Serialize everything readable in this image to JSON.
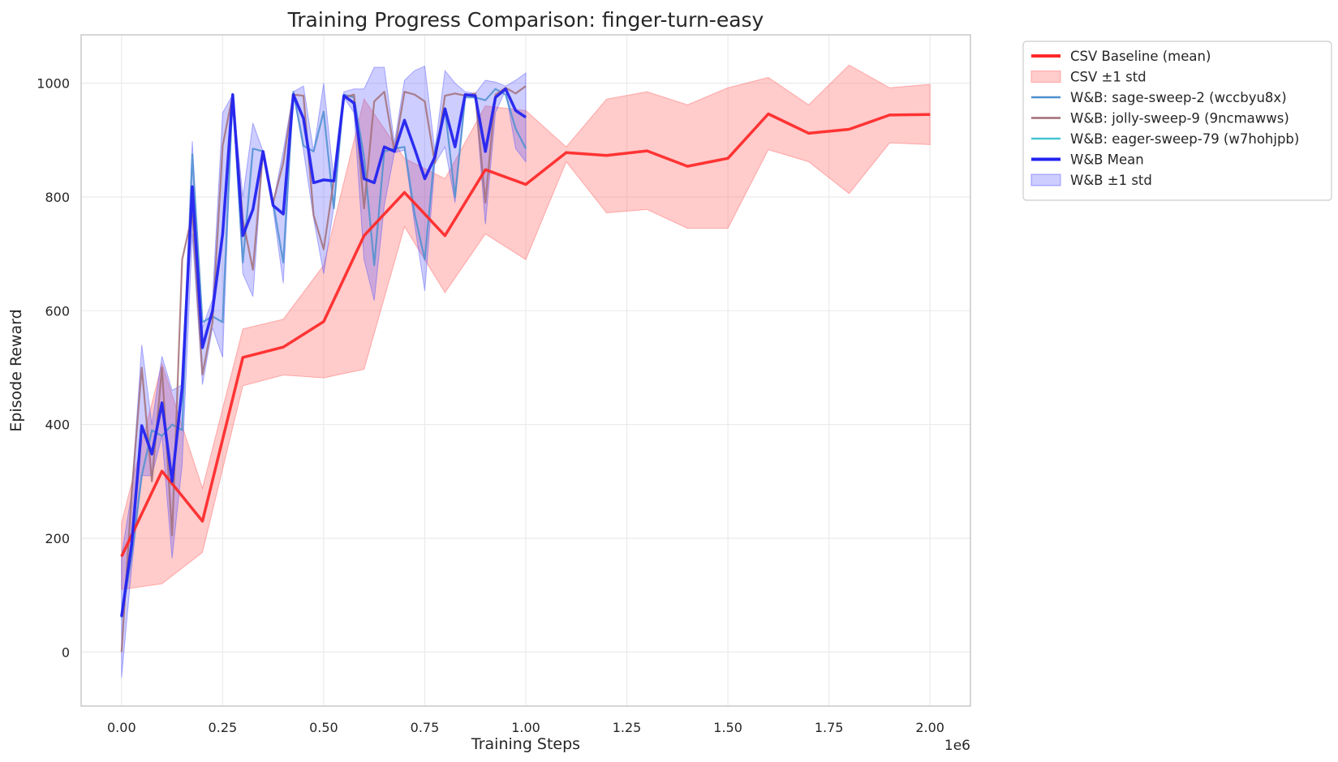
{
  "chart_data": {
    "type": "line",
    "title": "Training Progress Comparison: finger-turn-easy",
    "xlabel": "Training Steps",
    "ylabel": "Episode Reward",
    "x_offset_label": "1e6",
    "xlim": [
      -0.1,
      2.1
    ],
    "ylim": [
      -95,
      1085
    ],
    "x_ticks": [
      0.0,
      0.25,
      0.5,
      0.75,
      1.0,
      1.25,
      1.5,
      1.75,
      2.0
    ],
    "x_tick_labels": [
      "0.00",
      "0.25",
      "0.50",
      "0.75",
      "1.00",
      "1.25",
      "1.50",
      "1.75",
      "2.00"
    ],
    "y_ticks": [
      0,
      200,
      400,
      600,
      800,
      1000
    ],
    "y_tick_labels": [
      "0",
      "200",
      "400",
      "600",
      "800",
      "1000"
    ],
    "grid": true,
    "legend_position": "outside-top-right",
    "bands": [
      {
        "name": "CSV ±1 std",
        "color": "#ff6b6b",
        "opacity": 0.35,
        "x": [
          0,
          0.1,
          0.2,
          0.3,
          0.4,
          0.5,
          0.6,
          0.7,
          0.8,
          0.9,
          1.0,
          1.1,
          1.2,
          1.3,
          1.4,
          1.5,
          1.6,
          1.7,
          1.8,
          1.9,
          2.0
        ],
        "lower": [
          110,
          120,
          175,
          468,
          487,
          482,
          497,
          748,
          632,
          735,
          690,
          862,
          772,
          778,
          745,
          745,
          883,
          862,
          806,
          895,
          892
        ],
        "upper": [
          227,
          507,
          288,
          568,
          585,
          680,
          972,
          868,
          832,
          960,
          952,
          888,
          972,
          985,
          962,
          992,
          1010,
          962,
          1032,
          992,
          998
        ]
      },
      {
        "name": "W&B ±1 std",
        "color": "#4a4aff",
        "opacity": 0.28,
        "x": [
          0,
          0.025,
          0.05,
          0.075,
          0.1,
          0.125,
          0.15,
          0.175,
          0.2,
          0.225,
          0.25,
          0.275,
          0.3,
          0.325,
          0.35,
          0.375,
          0.4,
          0.425,
          0.45,
          0.475,
          0.5,
          0.525,
          0.55,
          0.575,
          0.6,
          0.625,
          0.65,
          0.675,
          0.7,
          0.725,
          0.75,
          0.775,
          0.8,
          0.825,
          0.85,
          0.875,
          0.9,
          0.925,
          0.95,
          0.975,
          1.0
        ],
        "lower": [
          -45,
          150,
          310,
          310,
          380,
          165,
          330,
          735,
          470,
          570,
          518,
          980,
          665,
          625,
          878,
          780,
          648,
          982,
          882,
          762,
          665,
          782,
          975,
          948,
          690,
          618,
          785,
          878,
          882,
          752,
          635,
          858,
          888,
          790,
          978,
          975,
          752,
          948,
          988,
          885,
          862
        ],
        "upper": [
          170,
          280,
          540,
          400,
          520,
          460,
          470,
          898,
          570,
          620,
          948,
          980,
          800,
          930,
          880,
          790,
          880,
          985,
          995,
          880,
          1000,
          830,
          985,
          990,
          990,
          1028,
          1028,
          895,
          1005,
          1022,
          1030,
          882,
          1022,
          1000,
          985,
          982,
          1005,
          1002,
          995,
          1005,
          1018
        ]
      }
    ],
    "series": [
      {
        "name": "CSV Baseline (mean)",
        "color": "#ff2a2a",
        "width": 3.5,
        "x": [
          0,
          0.1,
          0.2,
          0.3,
          0.4,
          0.5,
          0.6,
          0.7,
          0.8,
          0.9,
          1.0,
          1.1,
          1.2,
          1.3,
          1.4,
          1.5,
          1.6,
          1.7,
          1.8,
          1.9,
          2.0
        ],
        "values": [
          168,
          318,
          230,
          518,
          536,
          581,
          732,
          808,
          732,
          848,
          822,
          878,
          873,
          881,
          854,
          868,
          946,
          912,
          919,
          944,
          945
        ]
      },
      {
        "name": "W&B: sage-sweep-2 (wccbyu8x)",
        "color": "#4c8fcf",
        "width": 2.2,
        "x": [
          0,
          0.025,
          0.05,
          0.075,
          0.1,
          0.125,
          0.15,
          0.175,
          0.2,
          0.225,
          0.25,
          0.275,
          0.3,
          0.325,
          0.35,
          0.375,
          0.4,
          0.425,
          0.45,
          0.475,
          0.5,
          0.525,
          0.55,
          0.575,
          0.6,
          0.625,
          0.65,
          0.675,
          0.7,
          0.725,
          0.75,
          0.775,
          0.8,
          0.825,
          0.85,
          0.875,
          0.9,
          0.925,
          0.95,
          0.975,
          1.0
        ],
        "values": [
          60,
          170,
          310,
          390,
          380,
          400,
          390,
          875,
          580,
          590,
          580,
          980,
          685,
          885,
          880,
          790,
          685,
          985,
          890,
          880,
          950,
          780,
          980,
          975,
          870,
          680,
          880,
          885,
          888,
          770,
          690,
          880,
          955,
          800,
          975,
          975,
          970,
          990,
          980,
          920,
          885
        ]
      },
      {
        "name": "W&B: jolly-sweep-9 (9ncmawws)",
        "color": "#a26f78",
        "width": 2.2,
        "x": [
          0,
          0.025,
          0.05,
          0.075,
          0.1,
          0.125,
          0.15,
          0.175,
          0.2,
          0.225,
          0.25,
          0.275,
          0.3,
          0.325,
          0.35,
          0.375,
          0.4,
          0.425,
          0.45,
          0.475,
          0.5,
          0.525,
          0.55,
          0.575,
          0.6,
          0.625,
          0.65,
          0.675,
          0.7,
          0.725,
          0.75,
          0.775,
          0.8,
          0.825,
          0.85,
          0.875,
          0.9,
          0.925,
          0.95,
          0.975,
          1.0
        ],
        "values": [
          0,
          280,
          500,
          300,
          500,
          205,
          690,
          770,
          488,
          580,
          890,
          980,
          760,
          672,
          880,
          790,
          860,
          980,
          978,
          768,
          708,
          830,
          975,
          980,
          780,
          968,
          985,
          880,
          985,
          980,
          968,
          860,
          978,
          982,
          978,
          982,
          790,
          980,
          992,
          982,
          995
        ]
      },
      {
        "name": "W&B: eager-sweep-79 (w7hohjpb)",
        "color": "#44c5d3",
        "width": 2.2,
        "x": [],
        "values": []
      },
      {
        "name": "W&B Mean",
        "color": "#2323f0",
        "width": 3.5,
        "x": [
          0,
          0.025,
          0.05,
          0.075,
          0.1,
          0.125,
          0.15,
          0.175,
          0.2,
          0.225,
          0.25,
          0.275,
          0.3,
          0.325,
          0.35,
          0.375,
          0.4,
          0.425,
          0.45,
          0.475,
          0.5,
          0.525,
          0.55,
          0.575,
          0.6,
          0.625,
          0.65,
          0.675,
          0.7,
          0.725,
          0.75,
          0.775,
          0.8,
          0.825,
          0.85,
          0.875,
          0.9,
          0.925,
          0.95,
          0.975,
          1.0
        ],
        "values": [
          62,
          190,
          398,
          348,
          438,
          300,
          465,
          818,
          535,
          600,
          735,
          980,
          732,
          778,
          880,
          785,
          770,
          980,
          938,
          825,
          830,
          828,
          978,
          965,
          832,
          825,
          888,
          880,
          935,
          885,
          832,
          870,
          955,
          888,
          980,
          978,
          880,
          975,
          990,
          952,
          940
        ]
      }
    ]
  },
  "legend": [
    {
      "label": "CSV Baseline (mean)",
      "kind": "line",
      "color": "#ff2a2a"
    },
    {
      "label": "CSV ±1 std",
      "kind": "patch",
      "color": "#ff6b6b"
    },
    {
      "label": "W&B: sage-sweep-2 (wccbyu8x)",
      "kind": "line",
      "color": "#4c8fcf"
    },
    {
      "label": "W&B: jolly-sweep-9 (9ncmawws)",
      "kind": "line",
      "color": "#a26f78"
    },
    {
      "label": "W&B: eager-sweep-79 (w7hohjpb)",
      "kind": "line",
      "color": "#44c5d3"
    },
    {
      "label": "W&B Mean",
      "kind": "line",
      "color": "#2323f0"
    },
    {
      "label": "W&B ±1 std",
      "kind": "patch",
      "color": "#4a4aff"
    }
  ]
}
